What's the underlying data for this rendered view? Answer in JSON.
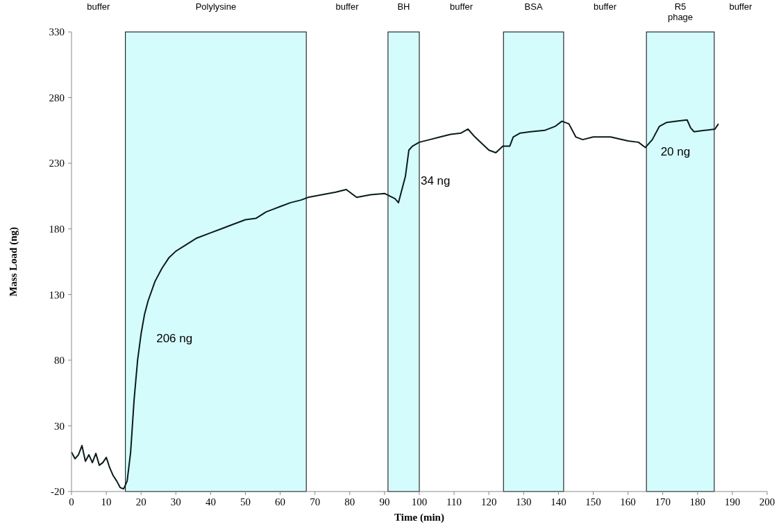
{
  "chart_data": {
    "type": "line",
    "xlabel": "Time (min)",
    "ylabel": "Mass Load (ng)",
    "xlim": [
      0,
      200
    ],
    "xticks": [
      0,
      10,
      20,
      30,
      40,
      50,
      60,
      70,
      80,
      90,
      100,
      110,
      120,
      130,
      140,
      150,
      160,
      170,
      180,
      190,
      200
    ],
    "ylim": [
      -20,
      330
    ],
    "yticks": [
      -20,
      30,
      80,
      130,
      180,
      230,
      280,
      330
    ],
    "grid": false,
    "marker": "none",
    "line_style": "solid",
    "series": [
      {
        "color": "#0a1a1a",
        "x": [
          0,
          1,
          2,
          3,
          4,
          5,
          6,
          7,
          8,
          9,
          10,
          11,
          12,
          13,
          14,
          15,
          16,
          17,
          18,
          19,
          20,
          21,
          22,
          24,
          26,
          28,
          30,
          33,
          36,
          40,
          43,
          46,
          50,
          53,
          56,
          58,
          60,
          63,
          66,
          68,
          72,
          76,
          79,
          82,
          86,
          90,
          93,
          94,
          95,
          96,
          97,
          98,
          100,
          103,
          106,
          109,
          112,
          114,
          116,
          118,
          120,
          122,
          124,
          126,
          127,
          129,
          132,
          136,
          139,
          141,
          143,
          145,
          147,
          150,
          155,
          160,
          163,
          165,
          167,
          169,
          171,
          174,
          177,
          178,
          179,
          182,
          185,
          186
        ],
        "values": [
          10,
          5,
          8,
          15,
          3,
          8,
          2,
          9,
          0,
          2,
          6,
          -2,
          -8,
          -12,
          -17,
          -18,
          -12,
          10,
          50,
          80,
          100,
          115,
          125,
          140,
          150,
          158,
          163,
          168,
          173,
          177,
          180,
          183,
          187,
          188,
          193,
          195,
          197,
          200,
          202,
          204,
          206,
          208,
          210,
          204,
          206,
          207,
          203,
          200,
          210,
          220,
          240,
          243,
          246,
          248,
          250,
          252,
          253,
          256,
          250,
          245,
          240,
          238,
          243,
          243,
          250,
          253,
          254,
          255,
          258,
          262,
          260,
          250,
          248,
          250,
          250,
          247,
          246,
          242,
          248,
          258,
          261,
          262,
          263,
          257,
          254,
          255,
          256,
          260
        ]
      }
    ],
    "bands": [
      {
        "axis": "x",
        "from": 15.5,
        "to": 67.5,
        "label": "Polylysine",
        "color": "#d5fcfc"
      },
      {
        "axis": "x",
        "from": 91,
        "to": 100,
        "label": "BH",
        "color": "#d5fcfc"
      },
      {
        "axis": "x",
        "from": 124.2,
        "to": 141.5,
        "label": "BSA",
        "color": "#d5fcfc"
      },
      {
        "axis": "x",
        "from": 165.3,
        "to": 184.8,
        "label": "R5 phage",
        "color": "#d5fcfc"
      }
    ],
    "annotations": [
      "buffer",
      "buffer",
      "buffer",
      "buffer",
      "buffer",
      {
        "text": "206 ng",
        "x": 20,
        "y": 100
      },
      {
        "text": "34 ng",
        "x": 96,
        "y": 220
      },
      {
        "text": "20 ng",
        "x": 165,
        "y": 242
      }
    ]
  }
}
